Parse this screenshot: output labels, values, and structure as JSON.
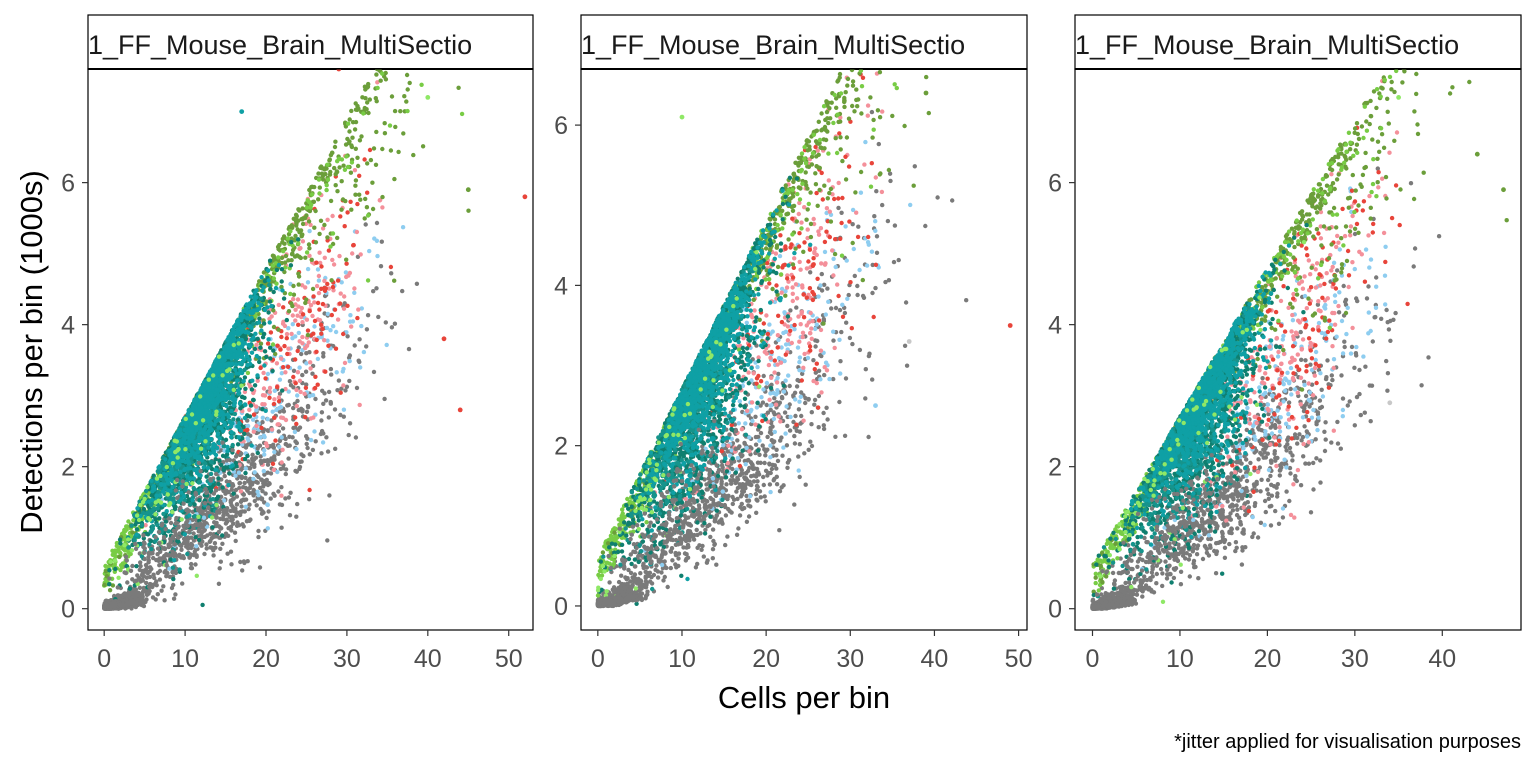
{
  "chart_data": {
    "type": "scatter",
    "xlabel": "Cells per bin",
    "ylabel": "Detections per bin (1000s)",
    "caption": "*jitter applied for visualisation purposes",
    "grid": false,
    "legend": "none",
    "colors": [
      "#6b9e3a",
      "#78cc45",
      "#8fe866",
      "#0f7f6f",
      "#0fa0a5",
      "#16948c",
      "#e8443a",
      "#f4909a",
      "#8ecdf0",
      "#c8c8c8",
      "#7a7a7a"
    ],
    "panels": [
      {
        "strip_label": "1_FF_Mouse_Brain_MultiSectio",
        "xlim": [
          -2,
          53
        ],
        "ylim": [
          -0.3,
          7.6
        ],
        "x_ticks": [
          0,
          10,
          20,
          30,
          40,
          50
        ],
        "y_ticks": [
          0,
          2,
          4,
          6
        ],
        "outliers": [
          [
            29,
            7.6,
            "#e8443a"
          ],
          [
            52,
            5.8,
            "#e8443a"
          ],
          [
            44,
            2.8,
            "#e8443a"
          ],
          [
            42,
            3.8,
            "#e8443a"
          ],
          [
            40,
            7.2,
            "#8fe866"
          ],
          [
            45,
            5.9,
            "#6b9e3a"
          ],
          [
            17,
            7.0,
            "#0fa0a5"
          ]
        ]
      },
      {
        "strip_label": "1_FF_Mouse_Brain_MultiSectio",
        "xlim": [
          -2,
          51
        ],
        "ylim": [
          -0.3,
          6.7
        ],
        "x_ticks": [
          0,
          10,
          20,
          30,
          40,
          50
        ],
        "y_ticks": [
          0,
          2,
          4,
          6
        ],
        "outliers": [
          [
            49,
            3.5,
            "#e8443a"
          ],
          [
            10,
            6.1,
            "#8fe866"
          ],
          [
            39,
            6.4,
            "#6b9e3a"
          ],
          [
            37,
            3.3,
            "#c8c8c8"
          ],
          [
            33,
            2.5,
            "#8ecdf0"
          ]
        ]
      },
      {
        "strip_label": "1_FF_Mouse_Brain_MultiSectio",
        "xlim": [
          -2,
          49
        ],
        "ylim": [
          -0.3,
          7.6
        ],
        "x_ticks": [
          0,
          10,
          20,
          30,
          40
        ],
        "y_ticks": [
          0,
          2,
          4,
          6
        ],
        "outliers": [
          [
            35,
            7.2,
            "#8fe866"
          ],
          [
            47,
            5.9,
            "#6b9e3a"
          ],
          [
            44,
            6.4,
            "#6b9e3a"
          ],
          [
            34,
            2.9,
            "#c8c8c8"
          ]
        ]
      }
    ]
  }
}
